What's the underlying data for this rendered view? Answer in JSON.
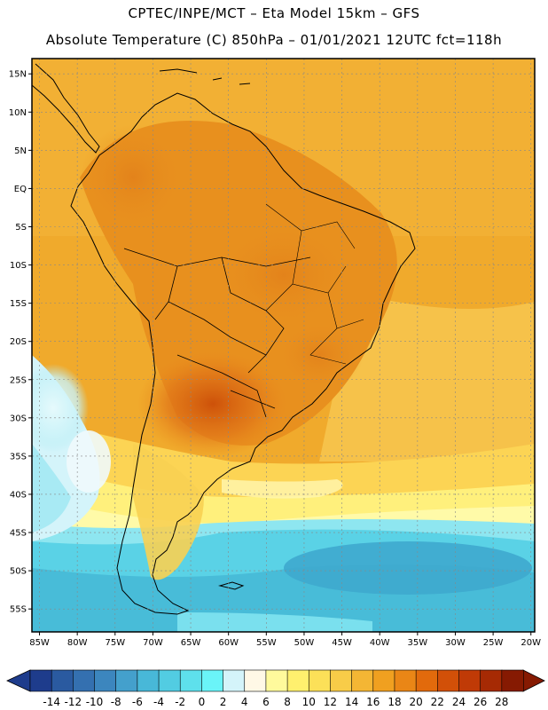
{
  "header": {
    "line1": "CPTEC/INPE/MCT –  Eta Model 15km – GFS",
    "line2": "Absolute Temperature (C) 850hPa – 01/01/2021 12UTC fct=118h"
  },
  "map": {
    "lat_labels": [
      "15N",
      "10N",
      "5N",
      "EQ",
      "5S",
      "10S",
      "15S",
      "20S",
      "25S",
      "30S",
      "35S",
      "40S",
      "45S",
      "50S",
      "55S"
    ],
    "lon_labels": [
      "85W",
      "80W",
      "75W",
      "70W",
      "65W",
      "60W",
      "55W",
      "50W",
      "45W",
      "40W",
      "35W",
      "30W",
      "25W",
      "20W"
    ],
    "extent": {
      "lon_min": -86,
      "lon_max": -19.5,
      "lat_min": -58,
      "lat_max": 17
    }
  },
  "colorbar": {
    "labels": [
      "-14",
      "-12",
      "-10",
      "-8",
      "-6",
      "-4",
      "-2",
      "0",
      "2",
      "4",
      "6",
      "8",
      "10",
      "12",
      "14",
      "16",
      "18",
      "20",
      "22",
      "24",
      "26",
      "28"
    ],
    "colors": [
      "#1e3c8c",
      "#2a5aa0",
      "#3470b0",
      "#3c86be",
      "#44a0cc",
      "#48b8d8",
      "#52cce2",
      "#5ee0ec",
      "#6af4f8",
      "#d4f4fa",
      "#fff8e6",
      "#fffa9c",
      "#fff06e",
      "#fce058",
      "#f8cc48",
      "#f4b634",
      "#f0a020",
      "#ea8616",
      "#e26a0c",
      "#d25008",
      "#c03a06",
      "#a62a04",
      "#861a02"
    ]
  }
}
